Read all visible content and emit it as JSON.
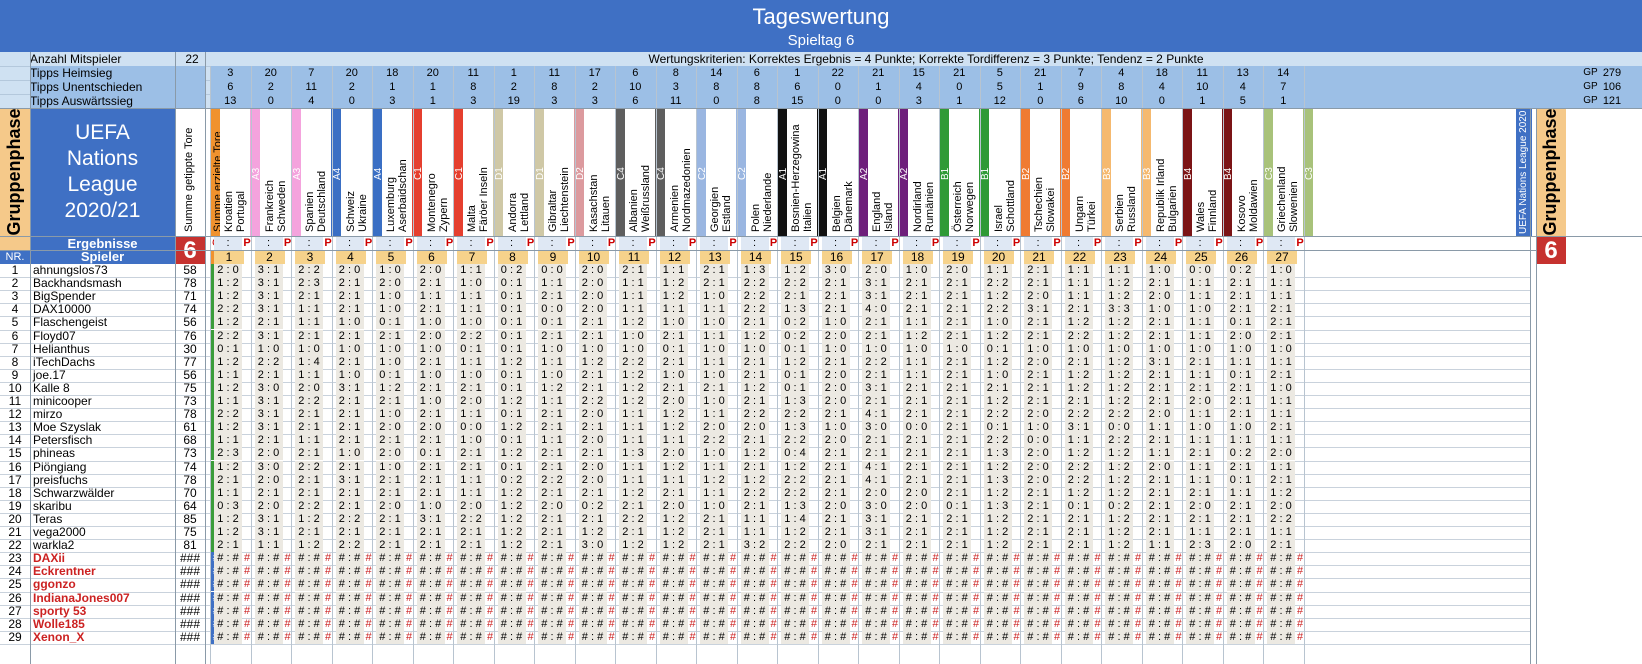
{
  "title": "Tageswertung",
  "subtitle": "Spieltag 6",
  "info": {
    "mitspieler_label": "Anzahl Mitspieler",
    "mitspieler_value": "22",
    "criteria": "Wertungskriterien: Korrektes Ergebnis = 4 Punkte; Korrekte Tordifferenz = 3 Punkte; Tendenz = 2 Punkte",
    "heimsieg_label": "Tipps Heimsieg",
    "unent_label": "Tipps Unentschieden",
    "auswaerts_label": "Tipps Auswärtssieg",
    "gp_label": "GP",
    "gp_heim": "279",
    "gp_unent": "106",
    "gp_ausw": "121"
  },
  "left_banner": {
    "gruppenphase": "Gruppenphase",
    "logo_line1": "UEFA",
    "logo_line2": "Nations",
    "logo_line3": "League",
    "logo_line4": "2020/21",
    "col_sum_tips": "Summe getippte Tore",
    "col_sum_goals": "Summe erzielte Tore"
  },
  "right_banner": {
    "league_label": "UEFA Nations League 2020",
    "gruppenphase": "Gruppenphase"
  },
  "results_row": {
    "label": "Ergebnisse",
    "spieltag_num": "6",
    "gp_label": "GP",
    "p_label": "P",
    "score_sep": ":"
  },
  "header_row": {
    "nr_label": "NR.",
    "spieler_label": "Spieler",
    "zero": "0"
  },
  "colors": {
    "title_blue": "#3f70c4",
    "light_blue": "#cfe1f2",
    "band_blue": "#9cbfe6",
    "orange": "#f0922e",
    "nr_blue": "#3f70c4",
    "gp_green": "#3a9c3a",
    "tip_bg": "#ece9e2",
    "red_text": "#cc2222",
    "red_big": "#c6322f"
  },
  "matches": [
    {
      "num": "1",
      "home": "Kroatien",
      "away": "Portugal",
      "group": "A3",
      "color": "#f4a3dd",
      "heim": "3",
      "unent": "6",
      "ausw": "13"
    },
    {
      "num": "2",
      "home": "Frankreich",
      "away": "Schweden",
      "group": "A3",
      "color": "#f4a3dd",
      "heim": "20",
      "unent": "2",
      "ausw": "0"
    },
    {
      "num": "3",
      "home": "Spanien",
      "away": "Deutschland",
      "group": "A4",
      "color": "#3a6fc4",
      "heim": "7",
      "unent": "11",
      "ausw": "4"
    },
    {
      "num": "4",
      "home": "Schweiz",
      "away": "Ukraine",
      "group": "A4",
      "color": "#3a6fc4",
      "heim": "20",
      "unent": "2",
      "ausw": "0"
    },
    {
      "num": "5",
      "home": "Luxemburg",
      "away": "Aserbaidschan",
      "group": "C1",
      "color": "#e53f2f",
      "heim": "18",
      "unent": "1",
      "ausw": "3"
    },
    {
      "num": "6",
      "home": "Montenegro",
      "away": "Zypern",
      "group": "C1",
      "color": "#e53f2f",
      "heim": "20",
      "unent": "1",
      "ausw": "1"
    },
    {
      "num": "7",
      "home": "Malta",
      "away": "Färöer Inseln",
      "group": "D1",
      "color": "#cfc8a6",
      "heim": "11",
      "unent": "8",
      "ausw": "3"
    },
    {
      "num": "8",
      "home": "Andorra",
      "away": "Lettland",
      "group": "D1",
      "color": "#cfc8a6",
      "heim": "1",
      "unent": "2",
      "ausw": "19"
    },
    {
      "num": "9",
      "home": "Gibraltar",
      "away": "Liechtenstein",
      "group": "D2",
      "color": "#dc9a9e",
      "heim": "11",
      "unent": "8",
      "ausw": "3"
    },
    {
      "num": "10",
      "home": "Kasachstan",
      "away": "Litauen",
      "group": "C4",
      "color": "#5e5e5e",
      "heim": "17",
      "unent": "2",
      "ausw": "3"
    },
    {
      "num": "11",
      "home": "Albanien",
      "away": "Weißrussland",
      "group": "C4",
      "color": "#5e5e5e",
      "heim": "6",
      "unent": "10",
      "ausw": "6"
    },
    {
      "num": "12",
      "home": "Armenien",
      "away": "Nordmazedonien",
      "group": "C2",
      "color": "#9ab6e1",
      "heim": "8",
      "unent": "3",
      "ausw": "11"
    },
    {
      "num": "13",
      "home": "Georgien",
      "away": "Estland",
      "group": "C2",
      "color": "#9ab6e1",
      "heim": "14",
      "unent": "8",
      "ausw": "0"
    },
    {
      "num": "14",
      "home": "Polen",
      "away": "Niederlande",
      "group": "A1",
      "color": "#111111",
      "heim": "6",
      "unent": "8",
      "ausw": "8"
    },
    {
      "num": "15",
      "home": "Bosnien-Herzegowina",
      "away": "Italien",
      "group": "A1",
      "color": "#111111",
      "heim": "1",
      "unent": "6",
      "ausw": "15"
    },
    {
      "num": "16",
      "home": "Belgien",
      "away": "Dänemark",
      "group": "A2",
      "color": "#6e1f7b",
      "heim": "22",
      "unent": "0",
      "ausw": "0"
    },
    {
      "num": "17",
      "home": "England",
      "away": "Island",
      "group": "A2",
      "color": "#6e1f7b",
      "heim": "21",
      "unent": "1",
      "ausw": "0"
    },
    {
      "num": "18",
      "home": "Nordirland",
      "away": "Rumänien",
      "group": "B1",
      "color": "#2f9a36",
      "heim": "15",
      "unent": "4",
      "ausw": "3"
    },
    {
      "num": "19",
      "home": "Österreich",
      "away": "Norwegen",
      "group": "B1",
      "color": "#2f9a36",
      "heim": "21",
      "unent": "0",
      "ausw": "1"
    },
    {
      "num": "20",
      "home": "Israel",
      "away": "Schottland",
      "group": "B2",
      "color": "#ef7b32",
      "heim": "5",
      "unent": "5",
      "ausw": "12"
    },
    {
      "num": "21",
      "home": "Tschechien",
      "away": "Slowakei",
      "group": "B2",
      "color": "#ef7b32",
      "heim": "21",
      "unent": "1",
      "ausw": "0"
    },
    {
      "num": "22",
      "home": "Ungarn",
      "away": "Türkei",
      "group": "B3",
      "color": "#f5b96f",
      "heim": "7",
      "unent": "9",
      "ausw": "6"
    },
    {
      "num": "23",
      "home": "Serbien",
      "away": "Russland",
      "group": "B3",
      "color": "#f5b96f",
      "heim": "4",
      "unent": "8",
      "ausw": "10"
    },
    {
      "num": "24",
      "home": "Republik Irland",
      "away": "Bulgarien",
      "group": "B4",
      "color": "#7b1416",
      "heim": "18",
      "unent": "4",
      "ausw": "0"
    },
    {
      "num": "25",
      "home": "Wales",
      "away": "Finnland",
      "group": "B4",
      "color": "#7b1416",
      "heim": "11",
      "unent": "10",
      "ausw": "1"
    },
    {
      "num": "26",
      "home": "Kosovo",
      "away": "Moldawien",
      "group": "C3",
      "color": "#a8c27a",
      "heim": "13",
      "unent": "4",
      "ausw": "5"
    },
    {
      "num": "27",
      "home": "Griechenland",
      "away": "Slowenien",
      "group": "C3",
      "color": "#a8c27a",
      "heim": "14",
      "unent": "7",
      "ausw": "1"
    }
  ],
  "players": [
    {
      "nr": "1",
      "name": "ahnungslos73",
      "sum": "58",
      "gp": "0",
      "tips": [
        "2:0",
        "3:1",
        "2:2",
        "2:0",
        "1:0",
        "2:0",
        "1:1",
        "0:2",
        "0:0",
        "2:0",
        "2:1",
        "1:1",
        "2:1",
        "1:3",
        "1:2",
        "3:0",
        "2:0",
        "1:0",
        "2:0",
        "1:1",
        "2:1",
        "1:1",
        "1:1",
        "1:0",
        "0:0",
        "0:2",
        "1:0"
      ]
    },
    {
      "nr": "2",
      "name": "Backhandsmash",
      "sum": "78",
      "gp": "0",
      "tips": [
        "1:2",
        "3:1",
        "2:3",
        "2:1",
        "2:0",
        "2:1",
        "1:0",
        "0:1",
        "1:1",
        "2:0",
        "1:1",
        "1:2",
        "2:1",
        "2:2",
        "2:2",
        "2:1",
        "3:1",
        "2:1",
        "2:1",
        "2:2",
        "2:1",
        "1:1",
        "1:2",
        "2:1",
        "1:1",
        "2:1",
        "1:1"
      ]
    },
    {
      "nr": "3",
      "name": "BigSpender",
      "sum": "71",
      "gp": "0",
      "tips": [
        "1:2",
        "3:1",
        "2:1",
        "2:1",
        "1:0",
        "1:1",
        "1:1",
        "0:1",
        "2:1",
        "2:0",
        "1:1",
        "1:2",
        "1:0",
        "2:2",
        "2:1",
        "2:1",
        "3:1",
        "2:1",
        "2:1",
        "1:2",
        "2:0",
        "1:1",
        "1:2",
        "2:0",
        "1:1",
        "2:1",
        "1:1"
      ]
    },
    {
      "nr": "4",
      "name": "DAX10000",
      "sum": "74",
      "gp": "0",
      "tips": [
        "2:2",
        "3:1",
        "1:1",
        "2:1",
        "1:0",
        "2:1",
        "1:1",
        "0:1",
        "0:0",
        "2:0",
        "1:1",
        "1:1",
        "1:1",
        "2:2",
        "1:3",
        "2:1",
        "4:0",
        "2:1",
        "2:1",
        "2:2",
        "3:1",
        "2:1",
        "3:3",
        "1:0",
        "1:0",
        "2:1",
        "2:1"
      ]
    },
    {
      "nr": "5",
      "name": "Flaschengeist",
      "sum": "56",
      "gp": "0",
      "tips": [
        "1:2",
        "2:1",
        "1:1",
        "1:0",
        "0:1",
        "1:0",
        "1:0",
        "0:1",
        "0:1",
        "2:1",
        "1:2",
        "1:0",
        "1:0",
        "2:1",
        "0:2",
        "1:0",
        "2:1",
        "1:1",
        "2:1",
        "1:0",
        "2:1",
        "1:2",
        "1:2",
        "2:1",
        "1:1",
        "0:1",
        "2:1"
      ]
    },
    {
      "nr": "6",
      "name": "Floyd07",
      "sum": "76",
      "gp": "0",
      "tips": [
        "2:2",
        "3:1",
        "2:1",
        "2:1",
        "2:1",
        "2:0",
        "2:2",
        "0:1",
        "2:1",
        "2:1",
        "1:0",
        "2:1",
        "1:1",
        "1:2",
        "0:2",
        "2:0",
        "2:1",
        "1:2",
        "2:1",
        "1:2",
        "2:1",
        "2:2",
        "1:2",
        "2:1",
        "1:1",
        "2:0",
        "2:1"
      ]
    },
    {
      "nr": "7",
      "name": "Helianthus",
      "sum": "30",
      "gp": "0",
      "tips": [
        "0:1",
        "1:0",
        "1:0",
        "1:0",
        "1:0",
        "1:0",
        "0:1",
        "0:1",
        "1:0",
        "1:0",
        "1:0",
        "0:1",
        "1:0",
        "1:0",
        "0:1",
        "1:0",
        "1:0",
        "1:0",
        "1:0",
        "0:1",
        "1:0",
        "1:0",
        "1:0",
        "1:0",
        "1:0",
        "1:0",
        "1:0"
      ]
    },
    {
      "nr": "8",
      "name": "iTechDachs",
      "sum": "77",
      "gp": "0",
      "tips": [
        "1:2",
        "2:2",
        "1:4",
        "2:1",
        "1:0",
        "2:1",
        "1:1",
        "1:2",
        "1:1",
        "1:2",
        "2:2",
        "2:1",
        "1:1",
        "2:1",
        "1:2",
        "2:1",
        "2:2",
        "1:1",
        "2:1",
        "1:2",
        "2:0",
        "2:1",
        "1:2",
        "3:1",
        "2:1",
        "1:1",
        "1:1"
      ]
    },
    {
      "nr": "9",
      "name": "joe.17",
      "sum": "56",
      "gp": "0",
      "tips": [
        "1:1",
        "2:1",
        "1:1",
        "1:0",
        "0:1",
        "1:0",
        "1:0",
        "0:1",
        "1:0",
        "2:1",
        "1:2",
        "1:0",
        "1:0",
        "2:1",
        "0:1",
        "2:0",
        "2:1",
        "1:1",
        "2:1",
        "1:0",
        "2:1",
        "1:2",
        "1:2",
        "2:1",
        "1:1",
        "0:1",
        "2:1"
      ]
    },
    {
      "nr": "10",
      "name": "Kalle 8",
      "sum": "75",
      "gp": "0",
      "tips": [
        "1:2",
        "3:0",
        "2:0",
        "3:1",
        "1:2",
        "2:1",
        "2:1",
        "0:1",
        "1:2",
        "2:1",
        "1:2",
        "2:1",
        "2:1",
        "1:2",
        "0:1",
        "2:0",
        "3:1",
        "2:1",
        "2:1",
        "2:1",
        "2:1",
        "1:2",
        "1:2",
        "2:1",
        "2:1",
        "2:1",
        "1:0"
      ]
    },
    {
      "nr": "11",
      "name": "minicooper",
      "sum": "73",
      "gp": "0",
      "tips": [
        "1:1",
        "3:1",
        "2:2",
        "2:1",
        "2:1",
        "1:0",
        "2:0",
        "1:2",
        "1:1",
        "2:2",
        "1:2",
        "2:0",
        "1:0",
        "2:1",
        "1:3",
        "2:0",
        "2:1",
        "2:1",
        "2:1",
        "1:2",
        "2:1",
        "2:1",
        "1:2",
        "2:1",
        "2:0",
        "2:1",
        "1:1"
      ]
    },
    {
      "nr": "12",
      "name": "mirzo",
      "sum": "78",
      "gp": "0",
      "tips": [
        "2:2",
        "3:1",
        "2:1",
        "2:1",
        "1:0",
        "2:1",
        "1:1",
        "0:1",
        "2:1",
        "2:0",
        "1:1",
        "1:2",
        "1:1",
        "2:2",
        "2:2",
        "2:1",
        "4:1",
        "2:1",
        "2:1",
        "2:2",
        "2:0",
        "2:2",
        "2:2",
        "2:0",
        "1:1",
        "2:1",
        "1:1"
      ]
    },
    {
      "nr": "13",
      "name": "Moe Szyslak",
      "sum": "61",
      "gp": "0",
      "tips": [
        "1:2",
        "3:1",
        "2:1",
        "2:1",
        "2:0",
        "2:0",
        "0:0",
        "1:2",
        "2:1",
        "2:1",
        "1:1",
        "1:2",
        "2:0",
        "2:0",
        "1:3",
        "1:0",
        "3:0",
        "0:0",
        "2:1",
        "0:1",
        "1:0",
        "3:1",
        "0:0",
        "1:1",
        "1:0",
        "1:0",
        "2:1"
      ]
    },
    {
      "nr": "14",
      "name": "Petersfisch",
      "sum": "68",
      "gp": "0",
      "tips": [
        "1:1",
        "2:1",
        "1:1",
        "2:1",
        "2:1",
        "2:1",
        "1:0",
        "0:1",
        "1:1",
        "2:0",
        "1:1",
        "1:1",
        "2:2",
        "2:1",
        "2:2",
        "2:0",
        "2:1",
        "2:1",
        "2:1",
        "2:2",
        "0:0",
        "1:1",
        "2:2",
        "2:1",
        "1:1",
        "1:1",
        "1:1"
      ]
    },
    {
      "nr": "15",
      "name": "phineas",
      "sum": "73",
      "gp": "0",
      "tips": [
        "2:3",
        "2:0",
        "2:1",
        "1:0",
        "2:0",
        "0:1",
        "2:1",
        "1:2",
        "2:1",
        "2:1",
        "1:3",
        "2:0",
        "1:0",
        "1:2",
        "0:4",
        "2:1",
        "2:1",
        "2:1",
        "2:1",
        "1:3",
        "2:0",
        "1:2",
        "1:2",
        "1:1",
        "2:1",
        "0:2",
        "2:0"
      ]
    },
    {
      "nr": "16",
      "name": "Piöngiang",
      "sum": "74",
      "gp": "0",
      "tips": [
        "1:2",
        "3:0",
        "2:2",
        "2:1",
        "1:0",
        "2:1",
        "2:1",
        "0:1",
        "2:1",
        "2:0",
        "1:1",
        "1:2",
        "1:1",
        "2:1",
        "1:2",
        "2:1",
        "4:1",
        "2:1",
        "2:1",
        "1:2",
        "2:0",
        "2:2",
        "1:2",
        "2:0",
        "1:1",
        "2:1",
        "1:1"
      ]
    },
    {
      "nr": "17",
      "name": "preisfuchs",
      "sum": "78",
      "gp": "0",
      "tips": [
        "2:1",
        "2:0",
        "2:1",
        "3:1",
        "2:1",
        "2:1",
        "1:1",
        "0:2",
        "2:2",
        "2:0",
        "1:1",
        "1:1",
        "1:2",
        "1:2",
        "2:2",
        "2:1",
        "4:1",
        "2:1",
        "2:1",
        "1:3",
        "2:0",
        "2:2",
        "1:2",
        "2:1",
        "1:1",
        "0:1",
        "2:1"
      ]
    },
    {
      "nr": "18",
      "name": "Schwarzwälder",
      "sum": "70",
      "gp": "0",
      "tips": [
        "1:1",
        "2:1",
        "2:1",
        "2:1",
        "2:1",
        "2:1",
        "1:1",
        "1:2",
        "2:1",
        "2:1",
        "1:2",
        "2:1",
        "1:1",
        "2:2",
        "2:2",
        "2:1",
        "2:0",
        "2:0",
        "2:1",
        "1:2",
        "2:1",
        "1:2",
        "1:2",
        "2:1",
        "2:1",
        "1:1",
        "1:2"
      ]
    },
    {
      "nr": "19",
      "name": "skaribu",
      "sum": "64",
      "gp": "0",
      "tips": [
        "0:3",
        "2:0",
        "2:2",
        "2:1",
        "2:0",
        "1:0",
        "2:0",
        "1:2",
        "2:0",
        "0:2",
        "2:1",
        "2:0",
        "1:0",
        "2:1",
        "1:3",
        "2:0",
        "3:0",
        "2:0",
        "0:1",
        "1:3",
        "2:1",
        "0:1",
        "0:2",
        "2:1",
        "2:0",
        "2:1",
        "2:0"
      ]
    },
    {
      "nr": "20",
      "name": "Teras",
      "sum": "85",
      "gp": "0",
      "tips": [
        "1:2",
        "3:1",
        "1:2",
        "2:2",
        "2:1",
        "3:1",
        "2:2",
        "1:2",
        "2:1",
        "2:1",
        "2:2",
        "1:2",
        "2:1",
        "1:1",
        "1:4",
        "2:1",
        "3:1",
        "2:1",
        "2:1",
        "1:2",
        "2:1",
        "2:1",
        "1:2",
        "2:1",
        "2:1",
        "2:1",
        "2:2"
      ]
    },
    {
      "nr": "21",
      "name": "vega2000",
      "sum": "75",
      "gp": "0",
      "tips": [
        "1:2",
        "3:1",
        "2:1",
        "2:1",
        "2:1",
        "2:1",
        "2:1",
        "1:2",
        "2:1",
        "1:2",
        "2:1",
        "1:2",
        "2:1",
        "1:1",
        "1:2",
        "2:1",
        "3:1",
        "2:1",
        "2:1",
        "1:2",
        "2:1",
        "2:1",
        "1:2",
        "2:1",
        "1:1",
        "2:1",
        "1:1"
      ]
    },
    {
      "nr": "22",
      "name": "warkla2",
      "sum": "81",
      "gp": "0",
      "tips": [
        "2:1",
        "1:1",
        "1:2",
        "2:2",
        "2:1",
        "2:1",
        "2:1",
        "1:2",
        "2:1",
        "3:0",
        "1:2",
        "1:2",
        "2:1",
        "3:2",
        "2:2",
        "2:0",
        "2:1",
        "2:1",
        "2:1",
        "1:2",
        "2:1",
        "2:1",
        "1:2",
        "1:1",
        "2:3",
        "2:0",
        "2:1"
      ]
    }
  ],
  "inactive_players": [
    {
      "nr": "23",
      "name": "DAXii"
    },
    {
      "nr": "24",
      "name": "Eckrentner"
    },
    {
      "nr": "25",
      "name": "ggonzo"
    },
    {
      "nr": "26",
      "name": "IndianaJones007"
    },
    {
      "nr": "27",
      "name": "sporty 53"
    },
    {
      "nr": "28",
      "name": "Wolle185"
    },
    {
      "nr": "29",
      "name": "Xenon_X"
    }
  ],
  "error_cells": {
    "sum": "###",
    "gp": "##",
    "tip_h": "#",
    "tip_sep": ":",
    "tip_a": "#",
    "p": "#"
  }
}
